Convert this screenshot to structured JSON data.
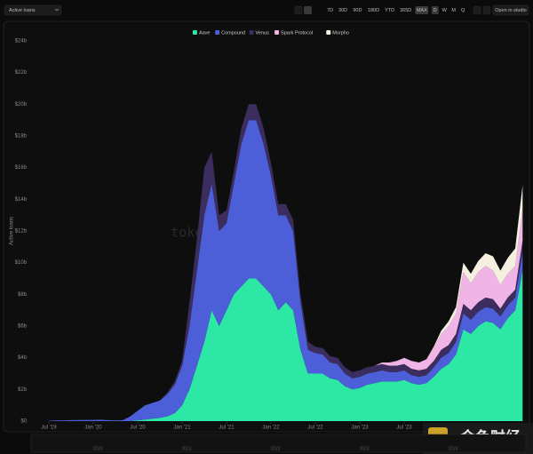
{
  "toolbar": {
    "metric": "Active loans",
    "ranges": [
      "7D",
      "30D",
      "90D",
      "180D",
      "YTD",
      "365D",
      "MAX"
    ],
    "granularity": [
      "D",
      "W",
      "M",
      "Q"
    ],
    "open": "Open in studio"
  },
  "watermark": "token terminal_",
  "corner_mark": "金色财经",
  "navigator": {
    "labels": [
      "2020",
      "2021",
      "2022",
      "2023",
      "2024"
    ]
  },
  "chart_data": {
    "type": "stacked-area",
    "y_label": "Active loans",
    "grid": false,
    "legend": "top",
    "x": [
      "2019-07",
      "2019-08",
      "2019-09",
      "2019-10",
      "2019-11",
      "2019-12",
      "2020-01",
      "2020-02",
      "2020-03",
      "2020-04",
      "2020-05",
      "2020-06",
      "2020-07",
      "2020-08",
      "2020-09",
      "2020-10",
      "2020-11",
      "2020-12",
      "2021-01",
      "2021-02",
      "2021-03",
      "2021-04",
      "2021-05",
      "2021-06",
      "2021-07",
      "2021-08",
      "2021-09",
      "2021-10",
      "2021-11",
      "2021-12",
      "2022-01",
      "2022-02",
      "2022-03",
      "2022-04",
      "2022-05",
      "2022-06",
      "2022-07",
      "2022-08",
      "2022-09",
      "2022-10",
      "2022-11",
      "2022-12",
      "2023-01",
      "2023-02",
      "2023-03",
      "2023-04",
      "2023-05",
      "2023-06",
      "2023-07",
      "2023-08",
      "2023-09",
      "2023-10",
      "2023-11",
      "2023-12",
      "2024-01",
      "2024-02",
      "2024-03",
      "2024-04",
      "2024-05",
      "2024-06",
      "2024-07",
      "2024-08",
      "2024-09",
      "2024-10",
      "2024-11"
    ],
    "xticks": [
      {
        "value": "2019-07",
        "label": "Jul '19"
      },
      {
        "value": "2020-01",
        "label": "Jan '20"
      },
      {
        "value": "2020-07",
        "label": "Jul '20"
      },
      {
        "value": "2021-01",
        "label": "Jan '21"
      },
      {
        "value": "2021-07",
        "label": "Jul '21"
      },
      {
        "value": "2022-01",
        "label": "Jan '22"
      },
      {
        "value": "2022-07",
        "label": "Jul '22"
      },
      {
        "value": "2023-01",
        "label": "Jan '23"
      },
      {
        "value": "2023-07",
        "label": "Jul '23"
      }
    ],
    "ylim": [
      0,
      24
    ],
    "yticks": [
      {
        "value": 0,
        "label": "$0"
      },
      {
        "value": 2,
        "label": "$2b"
      },
      {
        "value": 4,
        "label": "$4b"
      },
      {
        "value": 6,
        "label": "$6b"
      },
      {
        "value": 8,
        "label": "$8b"
      },
      {
        "value": 10,
        "label": "$10b"
      },
      {
        "value": 12,
        "label": "$12b"
      },
      {
        "value": 14,
        "label": "$14b"
      },
      {
        "value": 16,
        "label": "$16b"
      },
      {
        "value": 18,
        "label": "$18b"
      },
      {
        "value": 20,
        "label": "$20b"
      },
      {
        "value": 22,
        "label": "$22b"
      },
      {
        "value": 24,
        "label": "$24b"
      }
    ],
    "series": [
      {
        "name": "Aave",
        "color": "#2de8a5",
        "values": [
          0,
          0,
          0,
          0,
          0,
          0,
          0,
          0,
          0,
          0,
          0,
          0,
          0.05,
          0.1,
          0.15,
          0.2,
          0.3,
          0.5,
          1,
          2,
          3.5,
          5,
          7,
          6,
          7,
          8,
          8.5,
          9,
          9,
          8.5,
          8,
          7,
          7.5,
          7,
          4.5,
          3,
          3,
          3,
          2.7,
          2.6,
          2.2,
          2,
          2.1,
          2.3,
          2.4,
          2.5,
          2.5,
          2.5,
          2.6,
          2.4,
          2.3,
          2.4,
          2.8,
          3.3,
          3.6,
          4.2,
          5.8,
          5.5,
          6,
          6.3,
          6.2,
          5.8,
          6.5,
          7,
          9.5
        ]
      },
      {
        "name": "Compound",
        "color": "#4c5fd9",
        "values": [
          0.03,
          0.04,
          0.05,
          0.06,
          0.07,
          0.08,
          0.08,
          0.09,
          0.06,
          0.05,
          0.06,
          0.3,
          0.6,
          0.9,
          1,
          1.1,
          1.4,
          1.8,
          2.5,
          4,
          6,
          8,
          8,
          6,
          5.5,
          7,
          9,
          10,
          10,
          9,
          7.5,
          6,
          5.5,
          5,
          3,
          1.5,
          1.3,
          1.2,
          1,
          1,
          0.8,
          0.7,
          0.7,
          0.7,
          0.7,
          0.7,
          0.6,
          0.6,
          0.6,
          0.5,
          0.5,
          0.5,
          0.6,
          0.7,
          0.7,
          0.8,
          1,
          0.9,
          0.9,
          0.9,
          0.9,
          0.8,
          0.8,
          0.8,
          1.2
        ]
      },
      {
        "name": "Venus",
        "color": "#3b2d5e",
        "values": [
          0,
          0,
          0,
          0,
          0,
          0,
          0,
          0,
          0,
          0,
          0,
          0,
          0,
          0,
          0,
          0,
          0.1,
          0.2,
          0.3,
          1.5,
          2,
          3,
          2,
          1,
          0.8,
          0.8,
          1,
          1,
          1,
          1,
          0.8,
          0.7,
          0.7,
          0.7,
          0.5,
          0.5,
          0.4,
          0.4,
          0.4,
          0.4,
          0.4,
          0.4,
          0.4,
          0.4,
          0.4,
          0.4,
          0.4,
          0.4,
          0.4,
          0.4,
          0.4,
          0.4,
          0.4,
          0.5,
          0.5,
          0.5,
          0.6,
          0.6,
          0.6,
          0.6,
          0.6,
          0.5,
          0.5,
          0.5,
          0.7
        ]
      },
      {
        "name": "Spark Protocol",
        "color": "#f0b4e6",
        "values": [
          0,
          0,
          0,
          0,
          0,
          0,
          0,
          0,
          0,
          0,
          0,
          0,
          0,
          0,
          0,
          0,
          0,
          0,
          0,
          0,
          0,
          0,
          0,
          0,
          0,
          0,
          0,
          0,
          0,
          0,
          0,
          0,
          0,
          0,
          0,
          0,
          0,
          0,
          0,
          0,
          0,
          0,
          0,
          0,
          0,
          0.1,
          0.2,
          0.3,
          0.4,
          0.5,
          0.5,
          0.6,
          0.8,
          1,
          1.2,
          1.3,
          2,
          1.7,
          1.9,
          2,
          1.8,
          1.5,
          1.5,
          1.5,
          2
        ]
      },
      {
        "name": "Morpho",
        "color": "#f4efdf",
        "values": [
          0,
          0,
          0,
          0,
          0,
          0,
          0,
          0,
          0,
          0,
          0,
          0,
          0,
          0,
          0,
          0,
          0,
          0,
          0,
          0,
          0,
          0,
          0,
          0,
          0,
          0,
          0,
          0,
          0,
          0,
          0,
          0,
          0,
          0,
          0,
          0,
          0,
          0,
          0,
          0,
          0,
          0,
          0,
          0,
          0,
          0,
          0,
          0,
          0,
          0,
          0,
          0,
          0.1,
          0.2,
          0.3,
          0.4,
          0.6,
          0.6,
          0.7,
          0.8,
          0.9,
          0.9,
          1,
          1.1,
          1.5
        ]
      }
    ]
  }
}
